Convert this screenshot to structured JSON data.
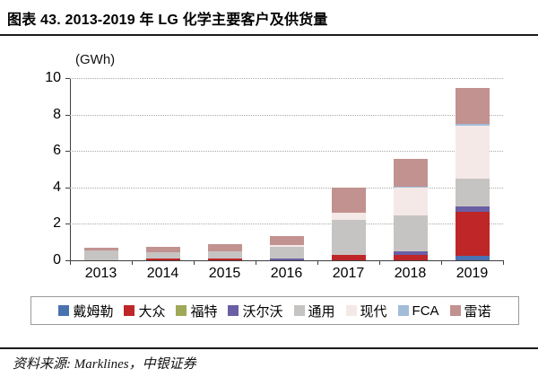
{
  "title": "图表 43. 2013-2019 年 LG 化学主要客户及供货量",
  "unit_label": "(GWh)",
  "source": "资料来源: Marklines，中银证券",
  "chart_data": {
    "type": "bar",
    "stacked": true,
    "title": "2013-2019 年 LG 化学主要客户及供货量",
    "ylabel": "(GWh)",
    "xlabel": "",
    "ylim": [
      0,
      10
    ],
    "yticks": [
      0,
      2,
      4,
      6,
      8,
      10
    ],
    "grid": "horizontal-dotted",
    "legend_position": "bottom",
    "categories": [
      "2013",
      "2014",
      "2015",
      "2016",
      "2017",
      "2018",
      "2019"
    ],
    "series": [
      {
        "name": "戴姆勒",
        "color": "#4a72b0",
        "values": [
          0,
          0,
          0,
          0,
          0,
          0,
          0.25
        ]
      },
      {
        "name": "大众",
        "color": "#bf2627",
        "values": [
          0,
          0.1,
          0.12,
          0,
          0.3,
          0.3,
          2.4
        ]
      },
      {
        "name": "福特",
        "color": "#9fa958",
        "values": [
          0,
          0,
          0,
          0,
          0,
          0,
          0
        ]
      },
      {
        "name": "沃尔沃",
        "color": "#6a5fa5",
        "values": [
          0,
          0,
          0,
          0.12,
          0,
          0.2,
          0.3
        ]
      },
      {
        "name": "通用",
        "color": "#c6c4c2",
        "values": [
          0.55,
          0.35,
          0.38,
          0.63,
          1.9,
          1.95,
          1.55
        ]
      },
      {
        "name": "现代",
        "color": "#f4e9e7",
        "values": [
          0,
          0,
          0,
          0.1,
          0.4,
          1.55,
          2.9
        ]
      },
      {
        "name": "FCA",
        "color": "#a3bcd9",
        "values": [
          0,
          0,
          0,
          0,
          0,
          0.05,
          0.1
        ]
      },
      {
        "name": "雷诺",
        "color": "#c29290",
        "values": [
          0.15,
          0.3,
          0.4,
          0.5,
          1.4,
          1.5,
          1.95
        ]
      }
    ],
    "totals": [
      0.7,
      0.75,
      0.9,
      1.35,
      4.0,
      5.55,
      9.45
    ]
  }
}
